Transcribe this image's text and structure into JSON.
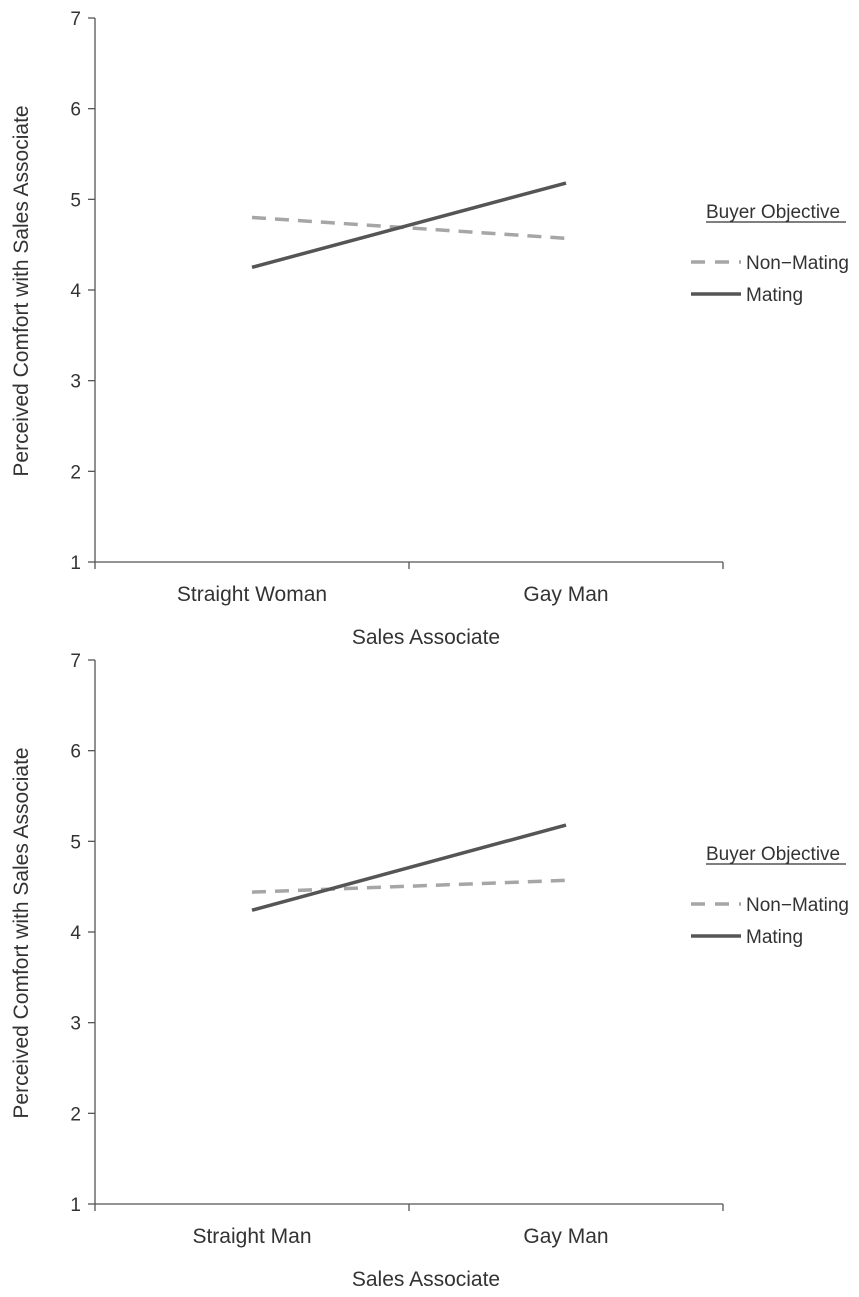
{
  "chart_data": [
    {
      "type": "line",
      "xlabel": "Sales Associate",
      "ylabel": "Perceived Comfort with Sales Associate",
      "categories": [
        "Straight Woman",
        "Gay Man"
      ],
      "ylim": [
        1,
        7
      ],
      "yticks": [
        1,
        2,
        3,
        4,
        5,
        6,
        7
      ],
      "legend": {
        "title": "Buyer Objective",
        "position": "right"
      },
      "series": [
        {
          "name": "Non−Mating",
          "values": [
            4.8,
            4.57
          ],
          "color": "#a6a6a6",
          "style": "dashed"
        },
        {
          "name": "Mating",
          "values": [
            4.25,
            5.18
          ],
          "color": "#555555",
          "style": "solid"
        }
      ]
    },
    {
      "type": "line",
      "xlabel": "Sales Associate",
      "ylabel": "Perceived Comfort with Sales Associate",
      "categories": [
        "Straight Man",
        "Gay Man"
      ],
      "ylim": [
        1,
        7
      ],
      "yticks": [
        1,
        2,
        3,
        4,
        5,
        6,
        7
      ],
      "legend": {
        "title": "Buyer Objective",
        "position": "right"
      },
      "series": [
        {
          "name": "Non−Mating",
          "values": [
            4.44,
            4.57
          ],
          "color": "#a6a6a6",
          "style": "dashed"
        },
        {
          "name": "Mating",
          "values": [
            4.24,
            5.18
          ],
          "color": "#555555",
          "style": "solid"
        }
      ]
    }
  ]
}
